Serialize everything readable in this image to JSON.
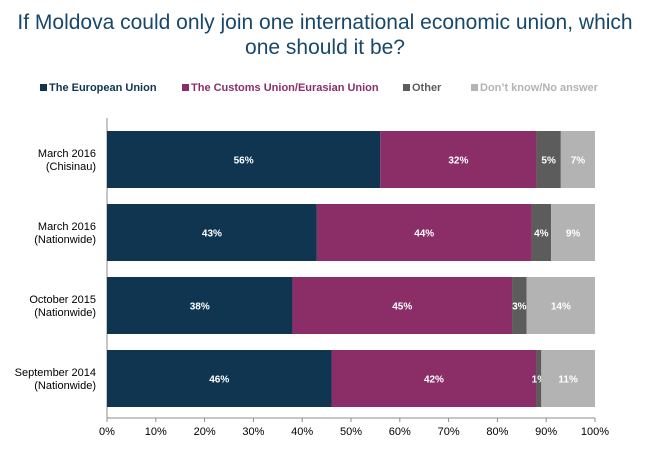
{
  "title_lines": [
    "If Moldova could only join one international economic union, which",
    "one should it be?"
  ],
  "colors": {
    "title": "#17486b",
    "eu": "#0f3550",
    "customs": "#8b2e67",
    "other": "#5c5c5c",
    "dk": "#b3b3b3"
  },
  "chart_data": {
    "type": "bar",
    "orientation": "horizontal",
    "stacked": true,
    "title": "If Moldova could only join one international economic union, which one should it be?",
    "categories": [
      [
        "March 2016",
        "(Chisinau)"
      ],
      [
        "March 2016",
        "(Nationwide)"
      ],
      [
        "October 2015",
        "(Nationwide)"
      ],
      [
        "September 2014",
        "(Nationwide)"
      ]
    ],
    "series": [
      {
        "name": "The European Union",
        "color": "#0f3550",
        "values": [
          56,
          43,
          38,
          46
        ],
        "labels": [
          "56%",
          "43%",
          "38%",
          "46%"
        ]
      },
      {
        "name": "The Customs Union/Eurasian Union",
        "color": "#8b2e67",
        "values": [
          32,
          44,
          45,
          42
        ],
        "labels": [
          "32%",
          "44%",
          "45%",
          "42%"
        ]
      },
      {
        "name": "Other",
        "color": "#5c5c5c",
        "values": [
          5,
          4,
          3,
          1
        ],
        "labels": [
          "5%",
          "4%",
          "3%",
          "1%"
        ]
      },
      {
        "name": "Don’t know/No answer",
        "color": "#b3b3b3",
        "values": [
          7,
          9,
          14,
          11
        ],
        "labels": [
          "7%",
          "9%",
          "14%",
          "11%"
        ]
      }
    ],
    "xlim": [
      0,
      100
    ],
    "x_ticks": [
      "0%",
      "10%",
      "20%",
      "30%",
      "40%",
      "50%",
      "60%",
      "70%",
      "80%",
      "90%",
      "100%"
    ],
    "legend_position": "top",
    "grid": false
  }
}
